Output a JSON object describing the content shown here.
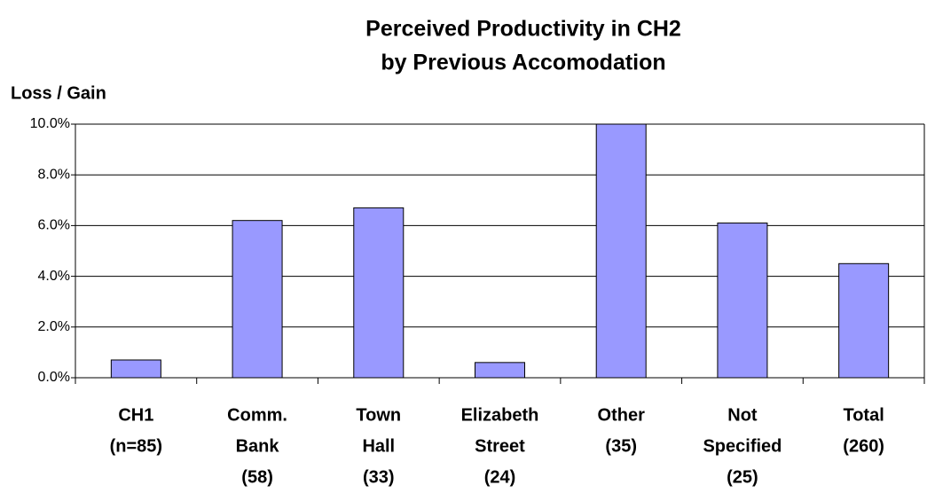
{
  "chart_data": {
    "type": "bar",
    "title": [
      "Perceived Productivity in CH2",
      "by Previous Accomodation"
    ],
    "y_label": "Loss /  Gain",
    "categories": [
      [
        "CH1",
        "(n=85)"
      ],
      [
        "Comm.",
        "Bank",
        "(58)"
      ],
      [
        "Town",
        "Hall",
        "(33)"
      ],
      [
        "Elizabeth",
        "Street",
        "(24)"
      ],
      [
        "Other",
        "(35)"
      ],
      [
        "Not",
        "Specified",
        "(25)"
      ],
      [
        "Total",
        "(260)"
      ]
    ],
    "values": [
      0.7,
      6.2,
      6.7,
      0.6,
      10.0,
      6.1,
      4.5
    ],
    "color": "#9999ff",
    "ylim": [
      0,
      10
    ],
    "yticks": [
      {
        "value": 0,
        "label": "0.0%"
      },
      {
        "value": 2,
        "label": "2.0%"
      },
      {
        "value": 4,
        "label": "4.0%"
      },
      {
        "value": 6,
        "label": "6.0%"
      },
      {
        "value": 8,
        "label": "8.0%"
      },
      {
        "value": 10,
        "label": "10.0%"
      }
    ],
    "grid": true
  }
}
